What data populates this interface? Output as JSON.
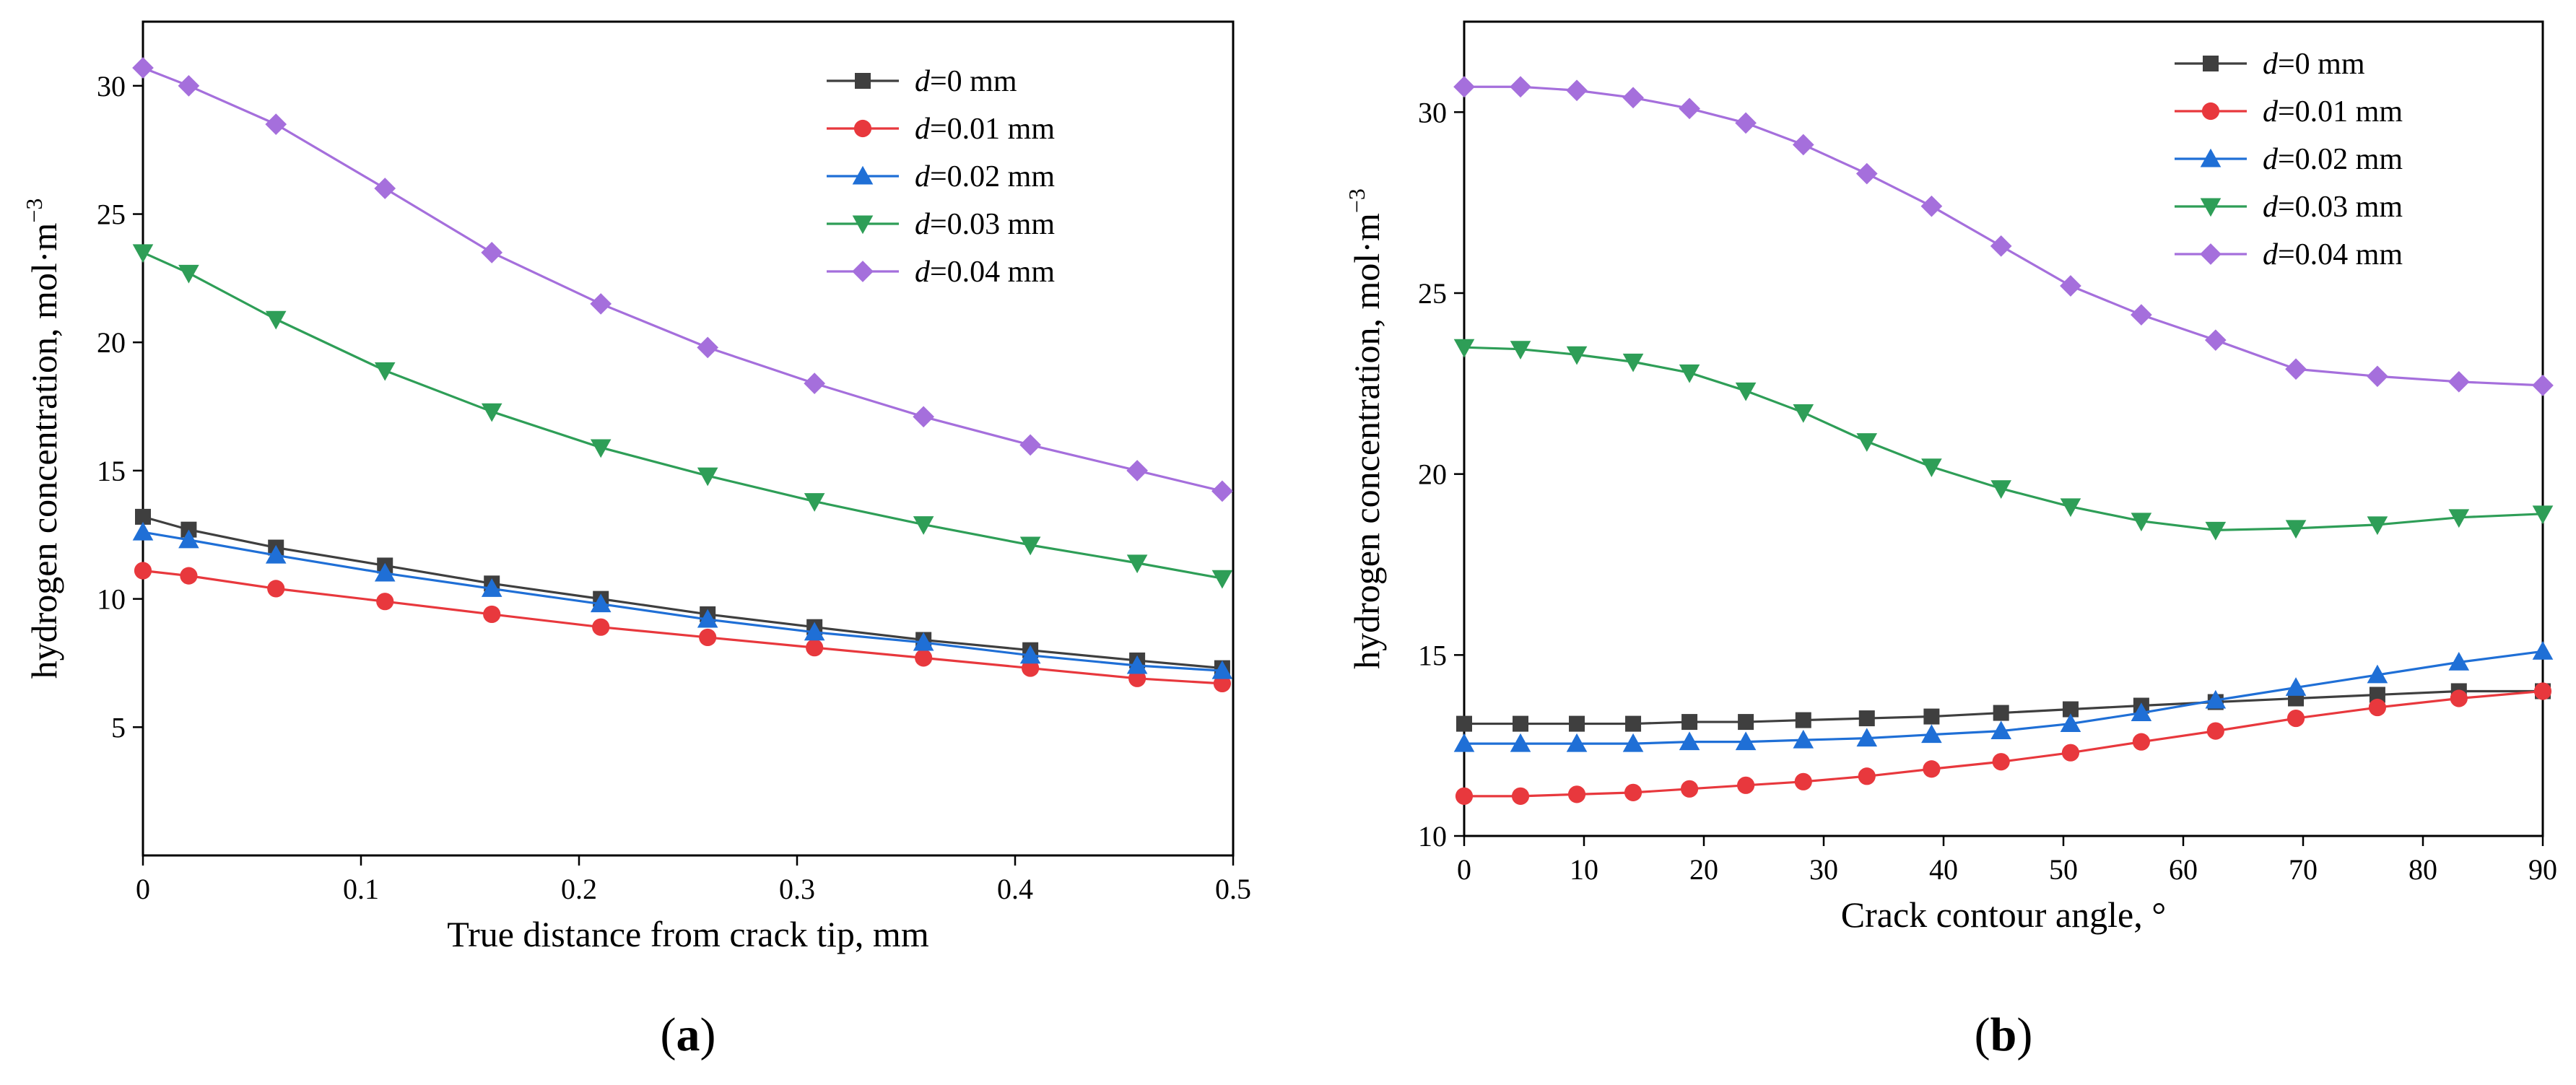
{
  "chart_data": [
    {
      "type": "line",
      "panel_label": "a",
      "xlabel": "True distance from crack tip, mm",
      "ylabel": "hydrogen concentration, mol·m",
      "ylabel_sup": "−3",
      "xlim": [
        0,
        0.5
      ],
      "ylim": [
        0,
        32.5
      ],
      "xticks": [
        0,
        0.1,
        0.2,
        0.3,
        0.4,
        0.5
      ],
      "xtick_labels": [
        "0",
        "0.1",
        "0.2",
        "0.3",
        "0.4",
        "0.5"
      ],
      "yticks": [
        5,
        10,
        15,
        20,
        25,
        30
      ],
      "ytick_labels": [
        "5",
        "10",
        "15",
        "20",
        "25",
        "30"
      ],
      "legend_position": "top-right",
      "x": [
        0,
        0.021,
        0.061,
        0.111,
        0.16,
        0.21,
        0.259,
        0.308,
        0.358,
        0.407,
        0.456,
        0.495
      ],
      "series": [
        {
          "name": "d=0 mm",
          "var": "d",
          "rest": "=0 mm",
          "color": "#3f3f3f",
          "marker": "square",
          "values": [
            13.2,
            12.7,
            12.0,
            11.3,
            10.6,
            10.0,
            9.4,
            8.9,
            8.4,
            8.0,
            7.6,
            7.3
          ]
        },
        {
          "name": "d=0.01 mm",
          "var": "d",
          "rest": "=0.01 mm",
          "color": "#e8383d",
          "marker": "circle",
          "values": [
            11.1,
            10.9,
            10.4,
            9.9,
            9.4,
            8.9,
            8.5,
            8.1,
            7.7,
            7.3,
            6.9,
            6.7
          ]
        },
        {
          "name": "d=0.02 mm",
          "var": "d",
          "rest": "=0.02 mm",
          "color": "#1f6fd6",
          "marker": "triangle-up",
          "values": [
            12.6,
            12.3,
            11.7,
            11.0,
            10.4,
            9.8,
            9.2,
            8.7,
            8.3,
            7.8,
            7.4,
            7.2
          ]
        },
        {
          "name": "d=0.03 mm",
          "var": "d",
          "rest": "=0.03 mm",
          "color": "#2e9e57",
          "marker": "triangle-down",
          "values": [
            23.5,
            22.7,
            20.9,
            18.9,
            17.3,
            15.9,
            14.8,
            13.8,
            12.9,
            12.1,
            11.4,
            10.8
          ]
        },
        {
          "name": "d=0.04 mm",
          "var": "d",
          "rest": "=0.04 mm",
          "color": "#a56fdc",
          "marker": "diamond",
          "values": [
            30.7,
            30.0,
            28.5,
            26.0,
            23.5,
            21.5,
            19.8,
            18.4,
            17.1,
            16.0,
            15.0,
            14.2
          ]
        }
      ]
    },
    {
      "type": "line",
      "panel_label": "b",
      "xlabel": "Crack contour angle, °",
      "ylabel": "hydrogen concentration, mol·m",
      "ylabel_sup": "−3",
      "xlim": [
        0,
        90
      ],
      "ylim": [
        10,
        32.5
      ],
      "xticks": [
        0,
        10,
        20,
        30,
        40,
        50,
        60,
        70,
        80,
        90
      ],
      "xtick_labels": [
        "0",
        "10",
        "20",
        "30",
        "40",
        "50",
        "60",
        "70",
        "80",
        "90"
      ],
      "yticks": [
        10,
        15,
        20,
        25,
        30
      ],
      "ytick_labels": [
        "10",
        "15",
        "20",
        "25",
        "30"
      ],
      "legend_position": "top-right",
      "x": [
        0,
        4.7,
        9.4,
        14.1,
        18.8,
        23.5,
        28.3,
        33.6,
        39.0,
        44.8,
        50.6,
        56.5,
        62.7,
        69.4,
        76.2,
        83.0,
        90.0
      ],
      "series": [
        {
          "name": "d=0 mm",
          "var": "d",
          "rest": "=0 mm",
          "color": "#3f3f3f",
          "marker": "square",
          "values": [
            13.1,
            13.1,
            13.1,
            13.1,
            13.15,
            13.15,
            13.2,
            13.25,
            13.3,
            13.4,
            13.5,
            13.6,
            13.7,
            13.8,
            13.9,
            14.0,
            14.0
          ]
        },
        {
          "name": "d=0.01 mm",
          "var": "d",
          "rest": "=0.01 mm",
          "color": "#e8383d",
          "marker": "circle",
          "values": [
            11.1,
            11.1,
            11.15,
            11.2,
            11.3,
            11.4,
            11.5,
            11.65,
            11.85,
            12.05,
            12.3,
            12.6,
            12.9,
            13.25,
            13.55,
            13.8,
            14.0
          ]
        },
        {
          "name": "d=0.02 mm",
          "var": "d",
          "rest": "=0.02 mm",
          "color": "#1f6fd6",
          "marker": "triangle-up",
          "values": [
            12.55,
            12.55,
            12.55,
            12.55,
            12.6,
            12.6,
            12.65,
            12.7,
            12.8,
            12.9,
            13.1,
            13.4,
            13.75,
            14.1,
            14.45,
            14.8,
            15.1
          ]
        },
        {
          "name": "d=0.03 mm",
          "var": "d",
          "rest": "=0.03 mm",
          "color": "#2e9e57",
          "marker": "triangle-down",
          "values": [
            23.5,
            23.45,
            23.3,
            23.1,
            22.8,
            22.3,
            21.7,
            20.9,
            20.2,
            19.6,
            19.1,
            18.7,
            18.45,
            18.5,
            18.6,
            18.8,
            18.9
          ]
        },
        {
          "name": "d=0.04 mm",
          "var": "d",
          "rest": "=0.04 mm",
          "color": "#a56fdc",
          "marker": "diamond",
          "values": [
            30.7,
            30.7,
            30.6,
            30.4,
            30.1,
            29.7,
            29.1,
            28.3,
            27.4,
            26.3,
            25.2,
            24.4,
            23.7,
            22.9,
            22.7,
            22.55,
            22.45
          ]
        }
      ]
    }
  ]
}
